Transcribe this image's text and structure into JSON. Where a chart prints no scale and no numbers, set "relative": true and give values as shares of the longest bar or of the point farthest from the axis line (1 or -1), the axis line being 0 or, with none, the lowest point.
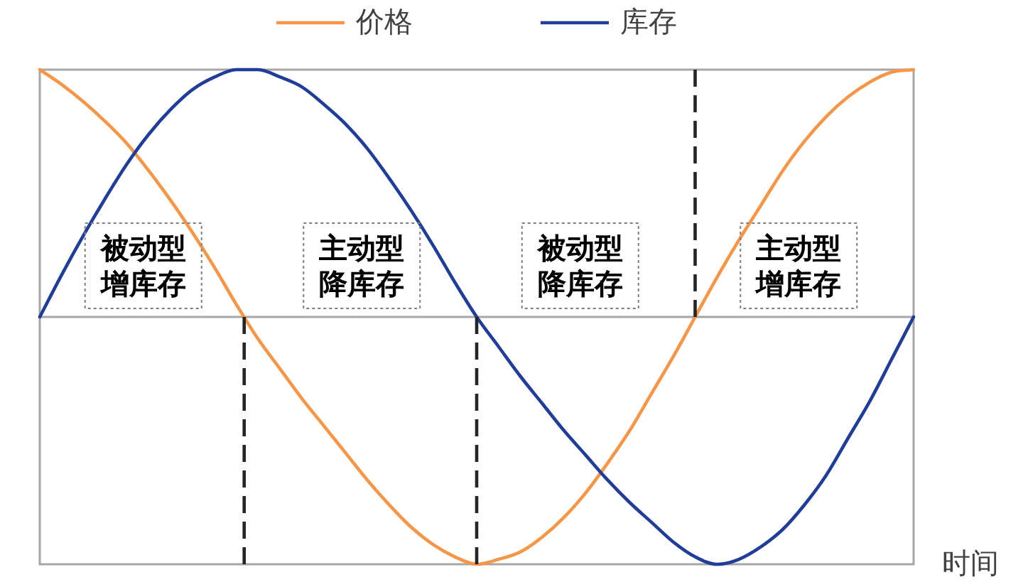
{
  "chart_data": {
    "type": "line",
    "relative": true,
    "xlabel": "时间",
    "legend": "top",
    "categories": [
      null,
      null,
      null,
      null,
      null,
      null,
      null,
      null,
      null,
      null,
      null,
      null,
      null,
      null,
      null,
      null,
      null,
      null,
      null,
      null,
      null,
      null,
      null,
      null,
      null,
      null,
      null,
      null,
      null,
      null,
      null,
      null,
      null,
      null,
      null,
      null,
      null,
      null,
      null,
      null,
      null
    ],
    "series": [
      {
        "name": "价格",
        "color": "#f79646",
        "values": [
          1.0,
          0.94,
          0.87,
          0.79,
          0.7,
          0.59,
          0.47,
          0.34,
          0.2,
          0.05,
          -0.09,
          -0.21,
          -0.33,
          -0.44,
          -0.55,
          -0.66,
          -0.76,
          -0.85,
          -0.92,
          -0.97,
          -1.0,
          -0.98,
          -0.95,
          -0.89,
          -0.81,
          -0.71,
          -0.59,
          -0.46,
          -0.31,
          -0.16,
          0.0,
          0.16,
          0.31,
          0.45,
          0.59,
          0.71,
          0.81,
          0.89,
          0.95,
          0.99,
          1.0
        ]
      },
      {
        "name": "库存",
        "color": "#1f3d99",
        "values": [
          0.0,
          0.17,
          0.33,
          0.48,
          0.62,
          0.74,
          0.84,
          0.92,
          0.97,
          1.0,
          1.0,
          0.97,
          0.93,
          0.86,
          0.78,
          0.68,
          0.56,
          0.43,
          0.29,
          0.14,
          0.0,
          -0.12,
          -0.24,
          -0.35,
          -0.46,
          -0.56,
          -0.66,
          -0.75,
          -0.83,
          -0.91,
          -0.97,
          -1.0,
          -0.98,
          -0.93,
          -0.86,
          -0.76,
          -0.64,
          -0.49,
          -0.34,
          -0.17,
          0.0
        ]
      }
    ],
    "annotations": [
      "被动型增库存",
      "主动型降库存",
      "被动型降库存",
      "主动型增库存"
    ]
  }
}
